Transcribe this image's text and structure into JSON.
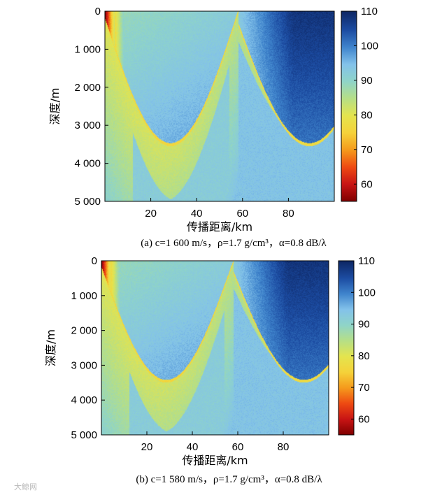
{
  "chart_data": [
    {
      "type": "heatmap",
      "caption": "(a) c=1 600 m/s，ρ=1.7 g/cm³，α=0.8 dB/λ",
      "xlabel": "传播距离/km",
      "ylabel": "深度/m",
      "x_ticks": [
        "20",
        "40",
        "60",
        "80"
      ],
      "x_tick_values": [
        20,
        40,
        60,
        80
      ],
      "y_ticks": [
        "0",
        "1 000",
        "2 000",
        "3 000",
        "4 000",
        "5 000"
      ],
      "y_tick_values": [
        0,
        1000,
        2000,
        3000,
        4000,
        5000
      ],
      "xlim": [
        0,
        100
      ],
      "ylim": [
        0,
        5000
      ],
      "colorbar": {
        "ticks": [
          "60",
          "70",
          "80",
          "90",
          "100",
          "110"
        ],
        "tick_values": [
          60,
          70,
          80,
          90,
          100,
          110
        ],
        "range": [
          55,
          110
        ]
      },
      "convergence_zones_km": [
        0,
        57,
        100
      ],
      "turning_depth_m": 3500,
      "near_field_loss_db": [
        55,
        82
      ],
      "beam_loss_db": 80,
      "shadow_loss_db": [
        92,
        108
      ],
      "variant": "a"
    },
    {
      "type": "heatmap",
      "caption": "(b) c=1 580 m/s，ρ=1.7 g/cm³，α=0.8 dB/λ",
      "xlabel": "传播距离/km",
      "ylabel": "深度/m",
      "x_ticks": [
        "20",
        "40",
        "60",
        "80"
      ],
      "x_tick_values": [
        20,
        40,
        60,
        80
      ],
      "y_ticks": [
        "0",
        "1 000",
        "2 000",
        "3 000",
        "4 000",
        "5 000"
      ],
      "y_tick_values": [
        0,
        1000,
        2000,
        3000,
        4000,
        5000
      ],
      "xlim": [
        0,
        100
      ],
      "ylim": [
        0,
        5000
      ],
      "colorbar": {
        "ticks": [
          "60",
          "70",
          "80",
          "90",
          "100",
          "110"
        ],
        "tick_values": [
          60,
          70,
          80,
          90,
          100,
          110
        ],
        "range": [
          55,
          110
        ]
      },
      "convergence_zones_km": [
        0,
        57,
        100
      ],
      "turning_depth_m": 3450,
      "near_field_loss_db": [
        55,
        82
      ],
      "beam_loss_db": 80,
      "shadow_loss_db": [
        92,
        108
      ],
      "variant": "b"
    }
  ],
  "watermark": "大鲸网"
}
